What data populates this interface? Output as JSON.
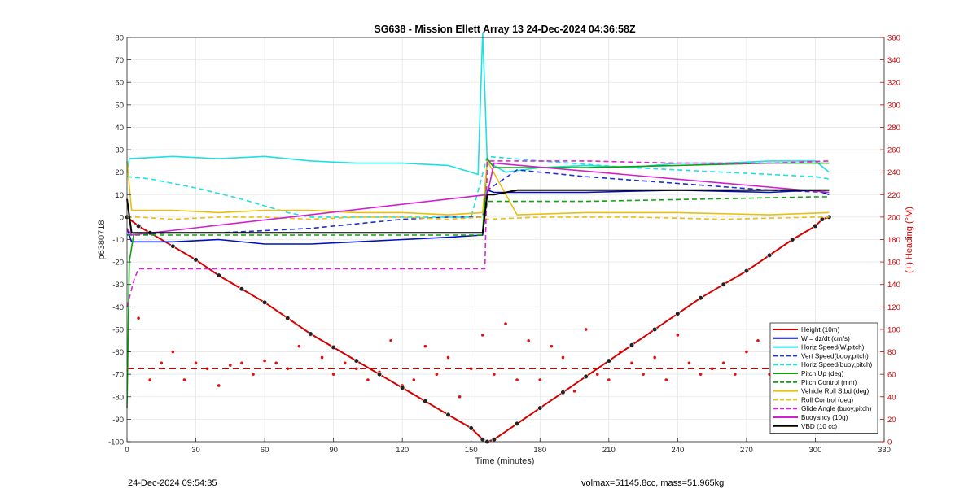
{
  "chart_data": {
    "type": "line",
    "title": "SG638 - Mission Ellett Array 13 24-Dec-2024 04:36:58Z",
    "xlabel": "Time (minutes)",
    "ylabel_left": "p6380718",
    "ylabel_right": "(+) Heading (°M)",
    "xlim": [
      0,
      330
    ],
    "ylim_left": [
      -100,
      80
    ],
    "ylim_right": [
      0,
      360
    ],
    "x_ticks": [
      0,
      30,
      60,
      90,
      120,
      150,
      180,
      210,
      240,
      270,
      300,
      330
    ],
    "y_ticks_left": [
      -100,
      -90,
      -80,
      -70,
      -60,
      -50,
      -40,
      -30,
      -20,
      -10,
      0,
      10,
      20,
      30,
      40,
      50,
      60,
      70,
      80
    ],
    "y_ticks_right": [
      0,
      20,
      40,
      60,
      80,
      100,
      120,
      140,
      160,
      180,
      200,
      220,
      240,
      260,
      280,
      300,
      320,
      340,
      360
    ],
    "grid": true,
    "legend_position": "bottom-right",
    "series": [
      {
        "name": "Height (10m)",
        "color": "#d40000",
        "style": "solid",
        "x": [
          0,
          5,
          10,
          20,
          30,
          40,
          50,
          60,
          70,
          80,
          90,
          100,
          110,
          120,
          130,
          140,
          150,
          155,
          157,
          160,
          170,
          180,
          190,
          200,
          210,
          220,
          230,
          240,
          250,
          260,
          270,
          280,
          290,
          300,
          303,
          306
        ],
        "y": [
          0,
          -4,
          -7,
          -13,
          -19,
          -26,
          -32,
          -38,
          -45,
          -52,
          -58,
          -64,
          -70,
          -76,
          -82,
          -88,
          -94,
          -99,
          -100,
          -99,
          -92,
          -85,
          -78,
          -71,
          -64,
          -57,
          -50,
          -43,
          -36,
          -30,
          -24,
          -17,
          -10,
          -4,
          -1,
          0
        ]
      },
      {
        "name": "W = dz/dt (cm/s)",
        "color": "#0010c0",
        "style": "solid",
        "x": [
          0,
          2,
          20,
          40,
          60,
          80,
          100,
          120,
          140,
          155,
          157,
          160,
          200,
          240,
          280,
          300,
          306
        ],
        "y": [
          -5,
          -11,
          -11,
          -10,
          -12,
          -12,
          -11,
          -10,
          -9,
          -8,
          12,
          11,
          11,
          12,
          11,
          12,
          10
        ]
      },
      {
        "name": "Horiz Speed(W,pitch)",
        "color": "#1ee0e0",
        "style": "solid",
        "x": [
          0,
          1,
          20,
          40,
          60,
          80,
          100,
          120,
          140,
          153,
          155,
          156,
          157,
          158,
          165,
          180,
          200,
          220,
          240,
          260,
          280,
          300,
          306
        ],
        "y": [
          20,
          26,
          27,
          26,
          27,
          25,
          24,
          24,
          23,
          19,
          82,
          55,
          24,
          24,
          20,
          22,
          23,
          22,
          24,
          24,
          25,
          25,
          20
        ]
      },
      {
        "name": "Vert Speed(buoy,pitch)",
        "color": "#1f2fd0",
        "style": "dashed",
        "x": [
          0,
          20,
          40,
          60,
          80,
          100,
          120,
          140,
          155,
          157,
          170,
          200,
          240,
          280,
          306
        ],
        "y": [
          -8,
          -7,
          -7,
          -6,
          -5,
          -3,
          -1,
          0,
          0,
          12,
          21,
          18,
          15,
          12,
          11
        ]
      },
      {
        "name": "Horiz Speed(buoy,pitch)",
        "color": "#1ee0e0",
        "style": "dashed",
        "x": [
          0,
          10,
          30,
          50,
          70,
          80,
          90,
          150,
          157,
          180,
          220,
          260,
          300,
          306
        ],
        "y": [
          18,
          17,
          13,
          8,
          2,
          0,
          0,
          0,
          27,
          25,
          22,
          20,
          18,
          17
        ]
      },
      {
        "name": "Pitch Up (deg)",
        "color": "#10a010",
        "style": "solid",
        "x": [
          0,
          1,
          3,
          10,
          60,
          120,
          155,
          157,
          160,
          200,
          240,
          280,
          300,
          306
        ],
        "y": [
          -85,
          -20,
          -7,
          -7,
          -7,
          -7,
          -7,
          26,
          22,
          22,
          23,
          24,
          24,
          24
        ]
      },
      {
        "name": "Pitch Control (mm)",
        "color": "#10a010",
        "style": "dashed",
        "x": [
          0,
          10,
          60,
          120,
          155,
          157,
          200,
          250,
          300,
          306
        ],
        "y": [
          -8,
          -8,
          -8,
          -8,
          -8,
          7,
          7,
          8,
          9,
          9
        ]
      },
      {
        "name": "Vehicle Roll Stbd (deg)",
        "color": "#e8c010",
        "style": "solid",
        "x": [
          0,
          2,
          20,
          40,
          60,
          80,
          100,
          120,
          140,
          155,
          157,
          170,
          200,
          240,
          280,
          306
        ],
        "y": [
          25,
          3,
          3,
          2,
          3,
          3,
          2,
          2,
          1,
          2,
          25,
          1,
          2,
          2,
          1,
          2
        ]
      },
      {
        "name": "Roll Control (deg)",
        "color": "#e8c010",
        "style": "dashed",
        "x": [
          0,
          5,
          20,
          40,
          60,
          80,
          100,
          120,
          140,
          155,
          157,
          180,
          220,
          260,
          300,
          306
        ],
        "y": [
          0,
          0,
          -1,
          0,
          0,
          -1,
          0,
          0,
          -1,
          0,
          -1,
          0,
          0,
          -1,
          0,
          0
        ]
      },
      {
        "name": "Glide Angle (buoy,pitch)",
        "color": "#e020e0",
        "style": "dashed",
        "x": [
          0,
          3,
          5,
          20,
          60,
          100,
          150,
          156,
          157,
          170,
          200,
          240,
          280,
          306
        ],
        "y": [
          -40,
          -28,
          -23,
          -23,
          -23,
          -23,
          -23,
          -23,
          25,
          25,
          25,
          24,
          24,
          25
        ]
      },
      {
        "name": "Buoyancy (10g)",
        "color": "#d020d0",
        "style": "solid",
        "x": [
          0,
          2,
          157,
          160,
          306
        ],
        "y": [
          -5,
          -8,
          10,
          24,
          11
        ]
      },
      {
        "name": "VBD (10 cc)",
        "color": "#000000",
        "style": "solid",
        "x": [
          0,
          2,
          5,
          60,
          120,
          155,
          157,
          160,
          170,
          200,
          240,
          280,
          306
        ],
        "y": [
          8,
          -7,
          -7,
          -7,
          -7,
          -7,
          10,
          10,
          12,
          12,
          12,
          12,
          12
        ]
      }
    ],
    "heading_scatter": {
      "name": "Heading",
      "color": "#e01010",
      "axis": "right",
      "x": [
        5,
        10,
        15,
        20,
        25,
        30,
        35,
        40,
        45,
        50,
        55,
        60,
        65,
        70,
        75,
        80,
        85,
        90,
        95,
        100,
        105,
        110,
        115,
        120,
        125,
        130,
        135,
        140,
        145,
        150,
        155,
        160,
        165,
        170,
        175,
        180,
        185,
        190,
        195,
        200,
        205,
        210,
        215,
        220,
        225,
        230,
        235,
        240,
        245,
        250,
        255,
        260,
        265,
        270,
        275,
        280,
        285,
        290,
        295,
        300,
        305
      ],
      "y": [
        110,
        55,
        70,
        80,
        55,
        70,
        65,
        50,
        68,
        70,
        60,
        72,
        70,
        65,
        85,
        95,
        75,
        60,
        70,
        65,
        55,
        62,
        90,
        50,
        55,
        85,
        60,
        75,
        40,
        65,
        95,
        60,
        105,
        55,
        90,
        55,
        85,
        75,
        45,
        100,
        60,
        55,
        80,
        70,
        60,
        75,
        55,
        95,
        70,
        60,
        65,
        70,
        60,
        80,
        90,
        60,
        45,
        75,
        55,
        70,
        65
      ]
    },
    "heading_mean": {
      "value": 65,
      "axis": "right",
      "color": "#d40000"
    }
  },
  "footer": {
    "left": "24-Dec-2024 09:54:35",
    "right": "volmax=51145.8cc, mass=51.965kg"
  }
}
